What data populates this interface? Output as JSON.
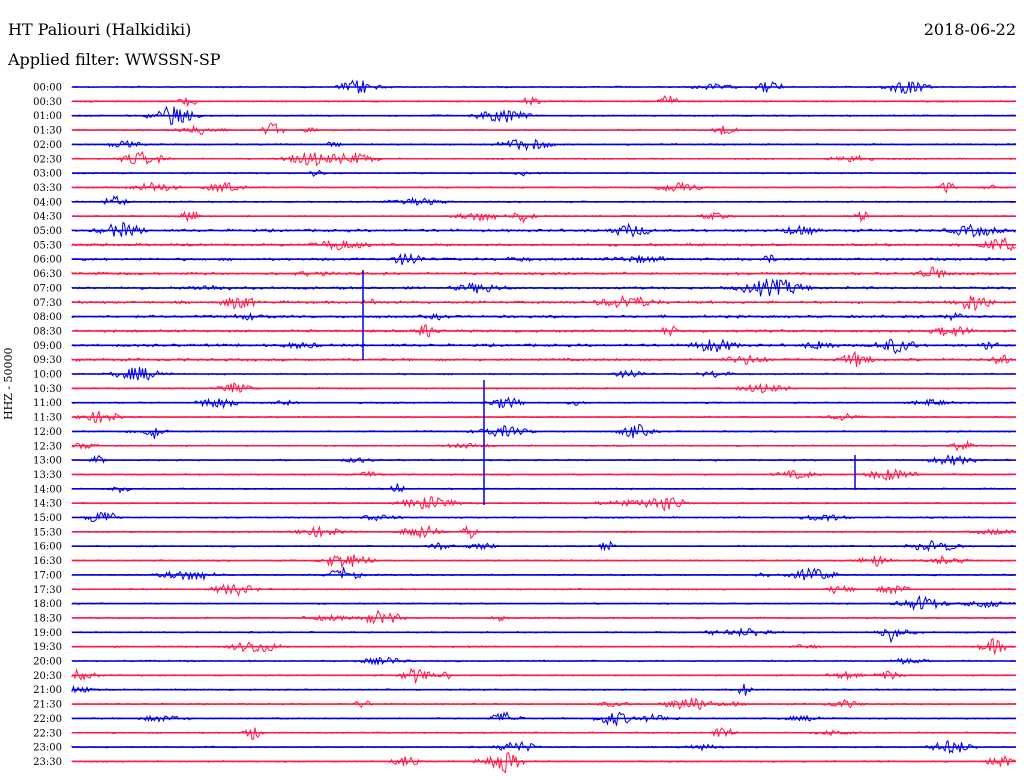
{
  "header": {
    "station": "HT Paliouri (Halkidiki)",
    "filter": "Applied filter: WWSSN-SP",
    "date": "2018-06-22"
  },
  "axis": {
    "ylabel": "HHZ - 50000"
  },
  "chart_data": {
    "type": "line",
    "title": "HT Paliouri (Halkidiki)",
    "subtitle": "Applied filter: WWSSN-SP",
    "ylabel": "HHZ - 50000",
    "date": "2018-06-22",
    "rows": [
      "00:00",
      "00:30",
      "01:00",
      "01:30",
      "02:00",
      "02:30",
      "03:00",
      "03:30",
      "04:00",
      "04:30",
      "05:00",
      "05:30",
      "06:00",
      "06:30",
      "07:00",
      "07:30",
      "08:00",
      "08:30",
      "09:00",
      "09:30",
      "10:00",
      "10:30",
      "11:00",
      "11:30",
      "12:00",
      "12:30",
      "13:00",
      "13:30",
      "14:00",
      "14:30",
      "15:00",
      "15:30",
      "16:00",
      "16:30",
      "17:00",
      "17:30",
      "18:00",
      "18:30",
      "19:00",
      "19:30",
      "20:00",
      "20:30",
      "21:00",
      "21:30",
      "22:00",
      "22:30",
      "23:00",
      "23:30"
    ],
    "colors": {
      "even": "#0000e6",
      "odd": "#ff1a4a"
    }
  }
}
